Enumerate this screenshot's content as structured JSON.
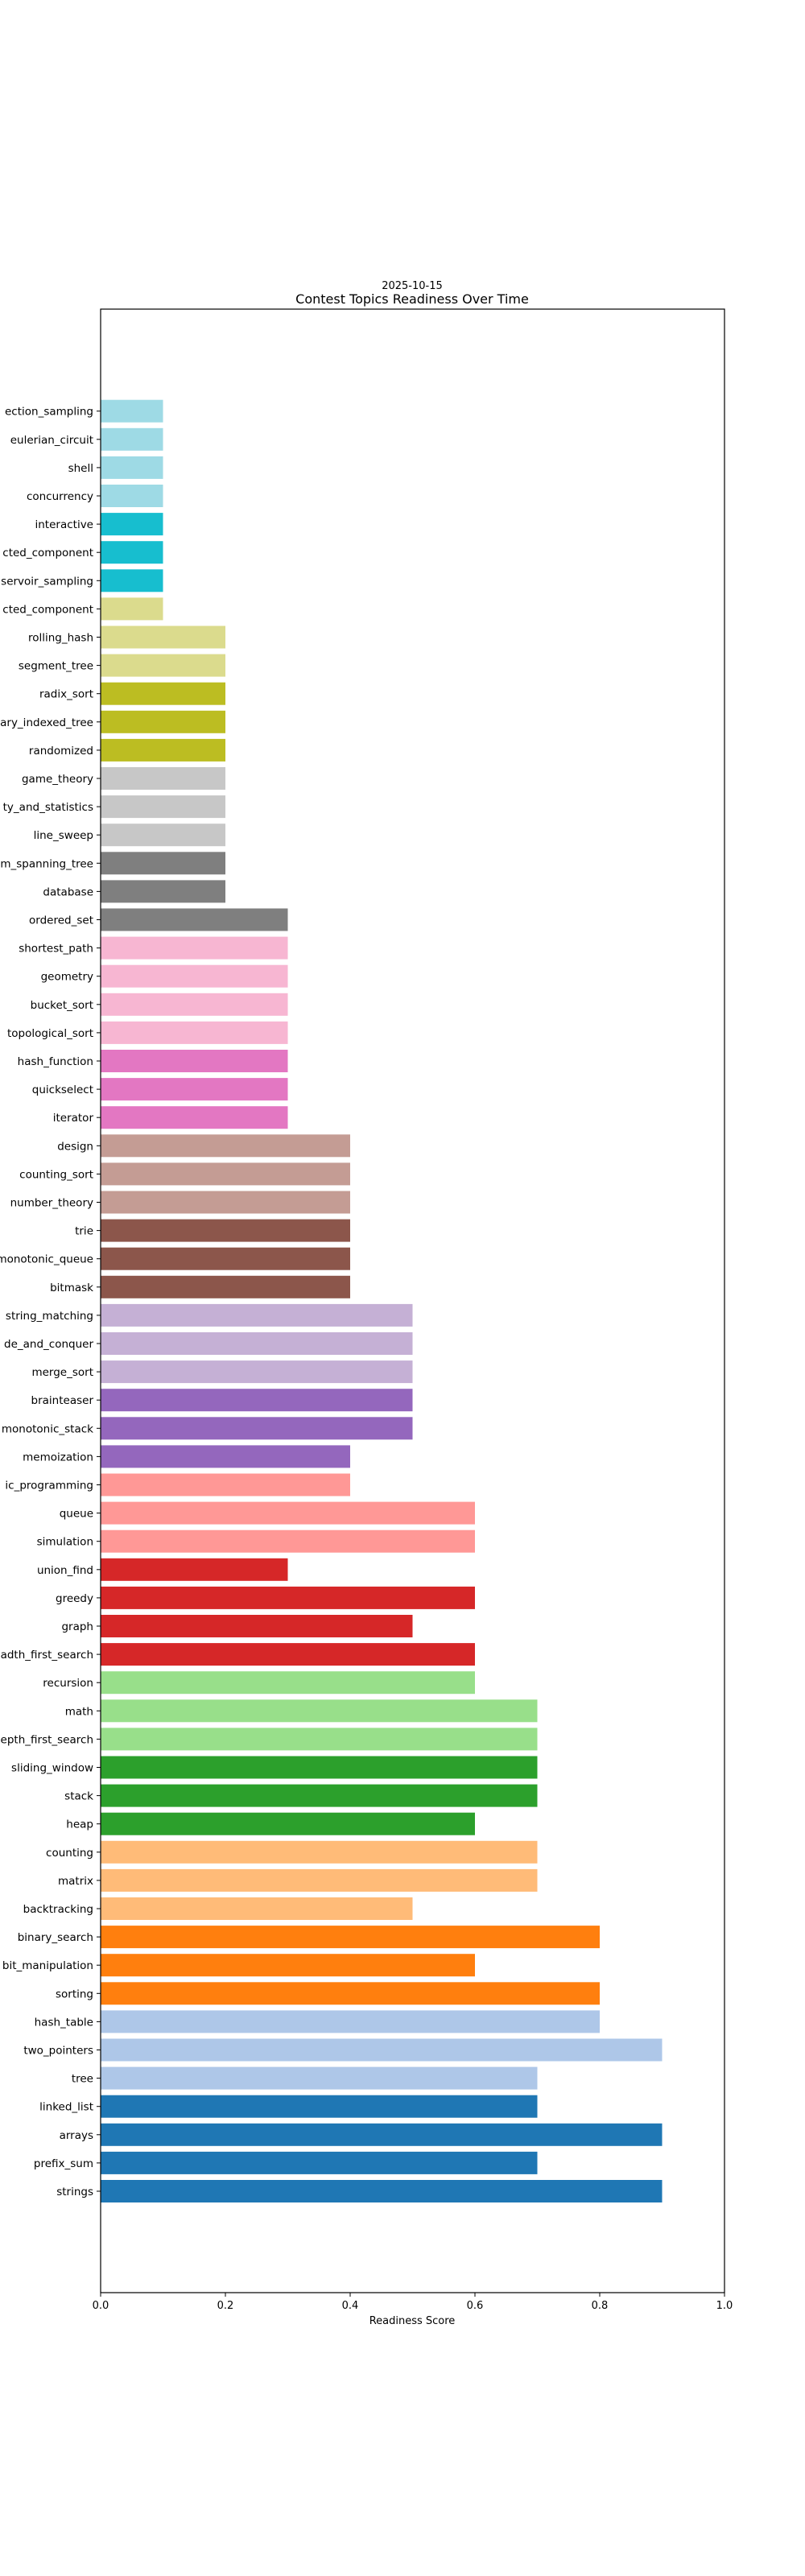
{
  "chart_data": {
    "type": "bar",
    "orientation": "horizontal",
    "subtitle": "2025-10-15",
    "title": "Contest Topics Readiness Over Time",
    "xlabel": "Readiness Score",
    "ylabel": "",
    "xlim": [
      0,
      1.0
    ],
    "xticks": [
      "0.0",
      "0.2",
      "0.4",
      "0.6",
      "0.8",
      "1.0"
    ],
    "grid": false,
    "legend": "none",
    "category_order": "bottom-to-top",
    "categories": [
      "strings",
      "prefix_sum",
      "arrays",
      "linked_list",
      "tree",
      "two_pointers",
      "hash_table",
      "sorting",
      "bit_manipulation",
      "binary_search",
      "backtracking",
      "matrix",
      "counting",
      "heap",
      "stack",
      "sliding_window",
      "epth_first_search",
      "math",
      "recursion",
      "adth_first_search",
      "graph",
      "greedy",
      "union_find",
      "simulation",
      "queue",
      "ic_programming",
      "memoization",
      "monotonic_stack",
      "brainteaser",
      "merge_sort",
      "de_and_conquer",
      "string_matching",
      "bitmask",
      "monotonic_queue",
      "trie",
      "number_theory",
      "counting_sort",
      "design",
      "iterator",
      "quickselect",
      "hash_function",
      "topological_sort",
      "bucket_sort",
      "geometry",
      "shortest_path",
      "ordered_set",
      "database",
      "m_spanning_tree",
      "line_sweep",
      "ty_and_statistics",
      "game_theory",
      "randomized",
      "ary_indexed_tree",
      "radix_sort",
      "segment_tree",
      "rolling_hash",
      "cted_component",
      "servoir_sampling",
      "cted_component",
      "interactive",
      "concurrency",
      "shell",
      "eulerian_circuit",
      "ection_sampling"
    ],
    "values": [
      0.9,
      0.7,
      0.9,
      0.7,
      0.7,
      0.9,
      0.8,
      0.8,
      0.6,
      0.8,
      0.5,
      0.7,
      0.7,
      0.6,
      0.7,
      0.7,
      0.7,
      0.7,
      0.6,
      0.6,
      0.5,
      0.6,
      0.3,
      0.6,
      0.6,
      0.4,
      0.4,
      0.5,
      0.5,
      0.5,
      0.5,
      0.5,
      0.4,
      0.4,
      0.4,
      0.4,
      0.4,
      0.4,
      0.3,
      0.3,
      0.3,
      0.3,
      0.3,
      0.3,
      0.3,
      0.3,
      0.2,
      0.2,
      0.2,
      0.2,
      0.2,
      0.2,
      0.2,
      0.2,
      0.2,
      0.2,
      0.1,
      0.1,
      0.1,
      0.1,
      0.1,
      0.1,
      0.1,
      0.1
    ],
    "colors": [
      "#1f77b4",
      "#1f77b4",
      "#1f77b4",
      "#1f77b4",
      "#aec7e8",
      "#aec7e8",
      "#aec7e8",
      "#ff7f0e",
      "#ff7f0e",
      "#ff7f0e",
      "#ffbb78",
      "#ffbb78",
      "#ffbb78",
      "#2ca02c",
      "#2ca02c",
      "#2ca02c",
      "#98df8a",
      "#98df8a",
      "#98df8a",
      "#d62728",
      "#d62728",
      "#d62728",
      "#d62728",
      "#ff9896",
      "#ff9896",
      "#ff9896",
      "#9467bd",
      "#9467bd",
      "#9467bd",
      "#c5b0d5",
      "#c5b0d5",
      "#c5b0d5",
      "#8c564b",
      "#8c564b",
      "#8c564b",
      "#c49c94",
      "#c49c94",
      "#c49c94",
      "#e377c2",
      "#e377c2",
      "#e377c2",
      "#f7b6d2",
      "#f7b6d2",
      "#f7b6d2",
      "#f7b6d2",
      "#7f7f7f",
      "#7f7f7f",
      "#7f7f7f",
      "#c7c7c7",
      "#c7c7c7",
      "#c7c7c7",
      "#bcbd22",
      "#bcbd22",
      "#bcbd22",
      "#dbdb8d",
      "#dbdb8d",
      "#dbdb8d",
      "#17becf",
      "#17becf",
      "#17becf",
      "#9edae5",
      "#9edae5",
      "#9edae5",
      "#9edae5"
    ]
  }
}
